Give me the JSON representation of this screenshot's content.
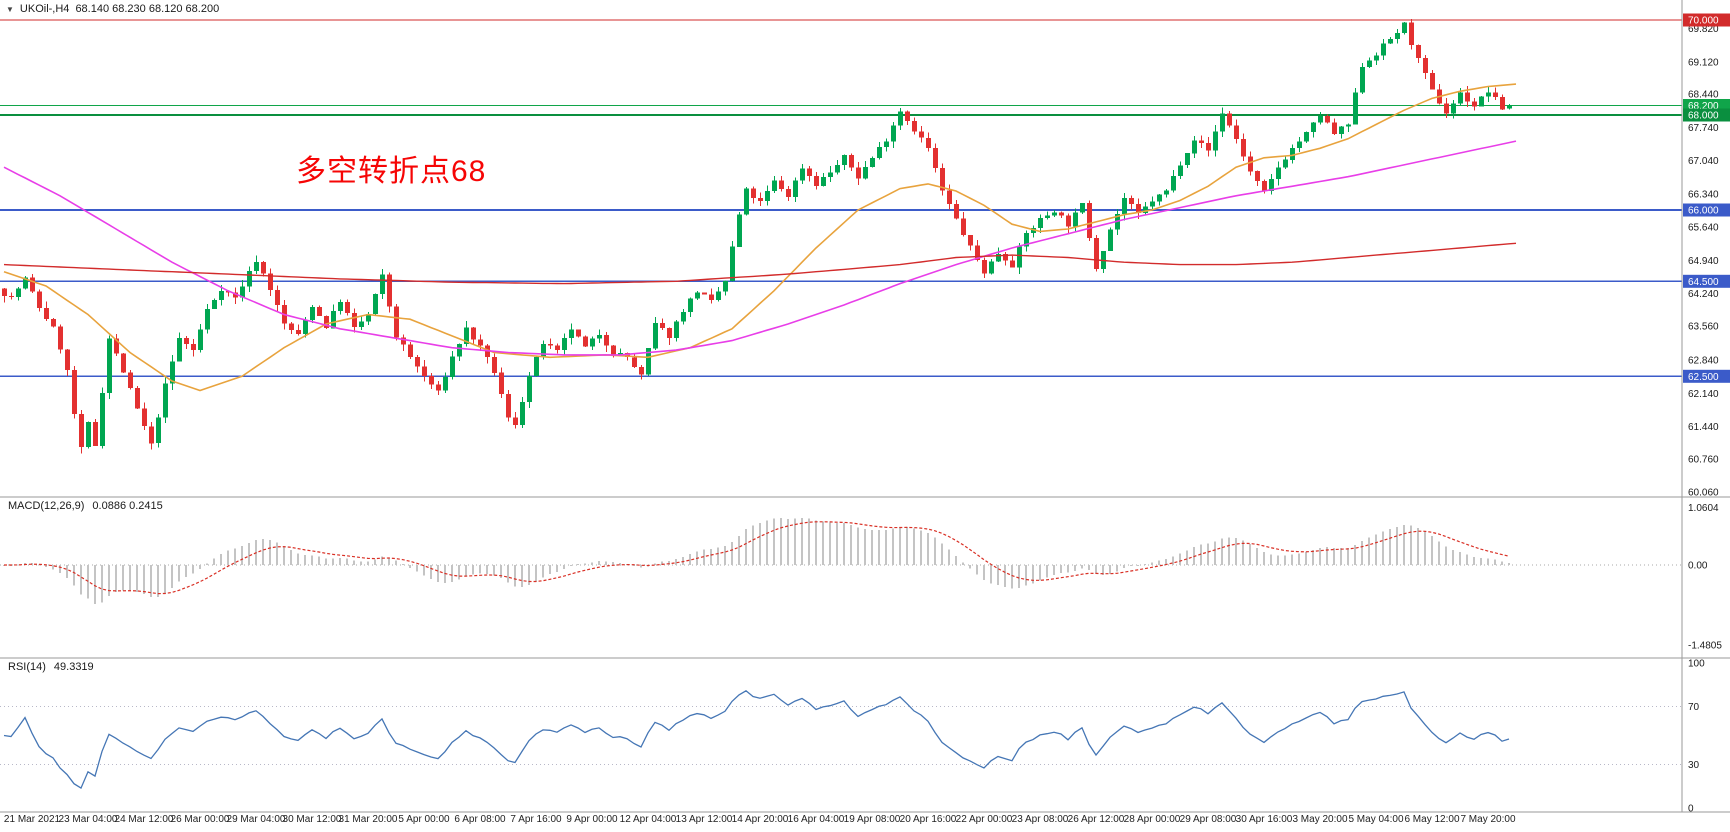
{
  "window": {
    "symbol_timeframe": "UKOil-,H4",
    "ohlc_text": "68.140 68.230 68.120 68.200"
  },
  "chart_data": {
    "type": "candlestick",
    "symbol": "UKOil-",
    "timeframe": "H4",
    "bar_count": 216,
    "ohlc": {
      "open": 68.14,
      "high": 68.23,
      "low": 68.12,
      "close": 68.2
    },
    "y_axis": {
      "min": 60.0,
      "max": 70.42,
      "ticks": [
        "69.820",
        "69.120",
        "68.440",
        "67.740",
        "67.040",
        "66.340",
        "65.640",
        "64.940",
        "64.240",
        "63.560",
        "62.840",
        "62.140",
        "61.440",
        "60.760",
        "60.060"
      ]
    },
    "x_labels": [
      "21 Mar 2021",
      "23 Mar 04:00",
      "24 Mar 12:00",
      "26 Mar 00:00",
      "29 Mar 04:00",
      "30 Mar 12:00",
      "31 Mar 20:00",
      "5 Apr 00:00",
      "6 Apr 08:00",
      "7 Apr 16:00",
      "9 Apr 00:00",
      "12 Apr 04:00",
      "13 Apr 12:00",
      "14 Apr 20:00",
      "16 Apr 04:00",
      "19 Apr 08:00",
      "20 Apr 16:00",
      "22 Apr 00:00",
      "23 Apr 08:00",
      "26 Apr 12:00",
      "28 Apr 00:00",
      "29 Apr 08:00",
      "30 Apr 16:00",
      "3 May 20:00",
      "5 May 04:00",
      "6 May 12:00",
      "7 May 20:00"
    ],
    "first_label_bar": 4,
    "bars_per_label": 8,
    "hlines": [
      {
        "price": 70.0,
        "label": "70.000",
        "color": "#d22b2b",
        "width": 1.3
      },
      {
        "price": 68.2,
        "label": "68.200",
        "color": "#10a54a",
        "width": 1.0
      },
      {
        "price": 68.0,
        "label": "68.000",
        "color": "#0a8f3f",
        "width": 1.6
      },
      {
        "price": 66.0,
        "label": "66.000",
        "color": "#3b5bc9",
        "width": 1.6
      },
      {
        "price": 64.5,
        "label": "64.500",
        "color": "#3b5bc9",
        "width": 1.6
      },
      {
        "price": 62.5,
        "label": "62.500",
        "color": "#3b5bc9",
        "width": 1.6
      }
    ],
    "annotation": {
      "text": "多空转折点68",
      "color": "#f60505",
      "bar": 42,
      "price": 67.2
    },
    "candle_colors": {
      "up": "#00a651",
      "down": "#e33030"
    },
    "price_path_anchors": [
      [
        0,
        64.35
      ],
      [
        2,
        64.15
      ],
      [
        4,
        64.55
      ],
      [
        6,
        63.95
      ],
      [
        8,
        63.5
      ],
      [
        9,
        63.1
      ],
      [
        10,
        62.6
      ],
      [
        11,
        61.7
      ],
      [
        12,
        60.95
      ],
      [
        13,
        61.5
      ],
      [
        14,
        61.05
      ],
      [
        15,
        62.2
      ],
      [
        16,
        63.3
      ],
      [
        18,
        62.6
      ],
      [
        20,
        61.8
      ],
      [
        22,
        61.05
      ],
      [
        24,
        62.3
      ],
      [
        26,
        63.3
      ],
      [
        28,
        63.05
      ],
      [
        30,
        63.9
      ],
      [
        32,
        64.35
      ],
      [
        34,
        64.15
      ],
      [
        37,
        64.95
      ],
      [
        39,
        64.35
      ],
      [
        41,
        63.6
      ],
      [
        43,
        63.35
      ],
      [
        45,
        64.0
      ],
      [
        47,
        63.55
      ],
      [
        49,
        64.1
      ],
      [
        51,
        63.5
      ],
      [
        53,
        63.8
      ],
      [
        55,
        64.6
      ],
      [
        57,
        63.35
      ],
      [
        59,
        62.9
      ],
      [
        61,
        62.5
      ],
      [
        63,
        62.15
      ],
      [
        65,
        62.9
      ],
      [
        67,
        63.5
      ],
      [
        69,
        63.1
      ],
      [
        71,
        62.6
      ],
      [
        73,
        61.6
      ],
      [
        74,
        61.5
      ],
      [
        76,
        62.5
      ],
      [
        78,
        63.2
      ],
      [
        80,
        63.0
      ],
      [
        82,
        63.5
      ],
      [
        84,
        63.1
      ],
      [
        86,
        63.4
      ],
      [
        88,
        63.0
      ],
      [
        90,
        62.9
      ],
      [
        92,
        62.5
      ],
      [
        94,
        63.6
      ],
      [
        96,
        63.35
      ],
      [
        98,
        63.9
      ],
      [
        100,
        64.3
      ],
      [
        102,
        64.05
      ],
      [
        104,
        64.5
      ],
      [
        106,
        65.9
      ],
      [
        107,
        66.4
      ],
      [
        109,
        66.15
      ],
      [
        111,
        66.6
      ],
      [
        113,
        66.3
      ],
      [
        115,
        66.9
      ],
      [
        117,
        66.55
      ],
      [
        119,
        66.8
      ],
      [
        121,
        67.1
      ],
      [
        123,
        66.7
      ],
      [
        125,
        67.1
      ],
      [
        127,
        67.5
      ],
      [
        129,
        68.1
      ],
      [
        131,
        67.7
      ],
      [
        133,
        67.3
      ],
      [
        135,
        66.4
      ],
      [
        137,
        65.8
      ],
      [
        139,
        65.2
      ],
      [
        141,
        64.7
      ],
      [
        143,
        65.1
      ],
      [
        145,
        64.85
      ],
      [
        147,
        65.5
      ],
      [
        149,
        65.8
      ],
      [
        151,
        66.0
      ],
      [
        153,
        65.7
      ],
      [
        155,
        66.1
      ],
      [
        157,
        64.8
      ],
      [
        159,
        65.6
      ],
      [
        161,
        66.25
      ],
      [
        163,
        65.9
      ],
      [
        165,
        66.2
      ],
      [
        167,
        66.4
      ],
      [
        169,
        67.0
      ],
      [
        171,
        67.5
      ],
      [
        173,
        67.25
      ],
      [
        175,
        68.05
      ],
      [
        177,
        67.5
      ],
      [
        179,
        66.8
      ],
      [
        181,
        66.35
      ],
      [
        183,
        66.9
      ],
      [
        185,
        67.3
      ],
      [
        187,
        67.6
      ],
      [
        189,
        68.0
      ],
      [
        191,
        67.6
      ],
      [
        193,
        67.8
      ],
      [
        195,
        69.05
      ],
      [
        197,
        69.3
      ],
      [
        199,
        69.6
      ],
      [
        201,
        69.9
      ],
      [
        203,
        69.15
      ],
      [
        205,
        68.5
      ],
      [
        207,
        68.05
      ],
      [
        209,
        68.45
      ],
      [
        211,
        68.2
      ],
      [
        213,
        68.5
      ],
      [
        215,
        68.14
      ],
      [
        216,
        68.2
      ]
    ],
    "ma_lines": [
      {
        "name": "ma-fast-orange",
        "color": "#e8a33d",
        "width": 1.6,
        "anchors": [
          [
            0,
            64.7
          ],
          [
            6,
            64.4
          ],
          [
            12,
            63.8
          ],
          [
            18,
            63.0
          ],
          [
            24,
            62.4
          ],
          [
            28,
            62.2
          ],
          [
            34,
            62.5
          ],
          [
            40,
            63.1
          ],
          [
            46,
            63.6
          ],
          [
            52,
            63.8
          ],
          [
            58,
            63.7
          ],
          [
            64,
            63.35
          ],
          [
            70,
            63.0
          ],
          [
            78,
            62.9
          ],
          [
            86,
            62.95
          ],
          [
            92,
            62.9
          ],
          [
            98,
            63.1
          ],
          [
            104,
            63.5
          ],
          [
            110,
            64.3
          ],
          [
            116,
            65.2
          ],
          [
            122,
            66.0
          ],
          [
            128,
            66.45
          ],
          [
            132,
            66.55
          ],
          [
            136,
            66.4
          ],
          [
            140,
            66.1
          ],
          [
            144,
            65.7
          ],
          [
            148,
            65.55
          ],
          [
            152,
            65.6
          ],
          [
            156,
            65.75
          ],
          [
            160,
            65.9
          ],
          [
            164,
            66.0
          ],
          [
            168,
            66.2
          ],
          [
            172,
            66.5
          ],
          [
            176,
            66.9
          ],
          [
            180,
            67.1
          ],
          [
            184,
            67.15
          ],
          [
            188,
            67.3
          ],
          [
            192,
            67.5
          ],
          [
            196,
            67.8
          ],
          [
            200,
            68.1
          ],
          [
            204,
            68.35
          ],
          [
            208,
            68.5
          ],
          [
            212,
            68.6
          ],
          [
            216,
            68.65
          ]
        ]
      },
      {
        "name": "ma-mid-magenta",
        "color": "#e83ee8",
        "width": 1.6,
        "anchors": [
          [
            0,
            66.9
          ],
          [
            8,
            66.3
          ],
          [
            16,
            65.6
          ],
          [
            24,
            64.9
          ],
          [
            32,
            64.3
          ],
          [
            40,
            63.8
          ],
          [
            48,
            63.5
          ],
          [
            56,
            63.3
          ],
          [
            64,
            63.1
          ],
          [
            72,
            63.0
          ],
          [
            80,
            62.95
          ],
          [
            88,
            62.95
          ],
          [
            96,
            63.05
          ],
          [
            104,
            63.25
          ],
          [
            112,
            63.6
          ],
          [
            120,
            64.0
          ],
          [
            128,
            64.45
          ],
          [
            136,
            64.85
          ],
          [
            144,
            65.2
          ],
          [
            152,
            65.5
          ],
          [
            160,
            65.8
          ],
          [
            168,
            66.05
          ],
          [
            176,
            66.3
          ],
          [
            184,
            66.5
          ],
          [
            192,
            66.7
          ],
          [
            200,
            66.95
          ],
          [
            208,
            67.2
          ],
          [
            216,
            67.45
          ]
        ]
      },
      {
        "name": "ma-slow-red",
        "color": "#d22b2b",
        "width": 1.4,
        "anchors": [
          [
            0,
            64.85
          ],
          [
            16,
            64.75
          ],
          [
            32,
            64.65
          ],
          [
            48,
            64.55
          ],
          [
            64,
            64.48
          ],
          [
            80,
            64.45
          ],
          [
            96,
            64.5
          ],
          [
            112,
            64.65
          ],
          [
            128,
            64.85
          ],
          [
            136,
            65.0
          ],
          [
            144,
            65.05
          ],
          [
            152,
            65.0
          ],
          [
            160,
            64.9
          ],
          [
            168,
            64.85
          ],
          [
            176,
            64.85
          ],
          [
            184,
            64.9
          ],
          [
            192,
            65.0
          ],
          [
            200,
            65.1
          ],
          [
            208,
            65.2
          ],
          [
            216,
            65.3
          ]
        ]
      }
    ],
    "indicators": [
      {
        "name": "MACD",
        "label": "MACD(12,26,9)",
        "values_label": "0.0886 0.2415",
        "params": [
          12,
          26,
          9
        ],
        "axis": [
          {
            "text": "1.0604",
            "value": 1.0604
          },
          {
            "text": "0.00",
            "value": 0
          },
          {
            "text": "-1.4805",
            "value": -1.4805
          }
        ],
        "histogram_color": "#c4c4c4",
        "signal_color": "#d93025"
      },
      {
        "name": "RSI",
        "label": "RSI(14)",
        "values_label": "49.3319",
        "params": [
          14
        ],
        "axis": [
          {
            "text": "100",
            "value": 100
          },
          {
            "text": "70",
            "value": 70
          },
          {
            "text": "30",
            "value": 30
          },
          {
            "text": "0",
            "value": 0
          }
        ],
        "levels": [
          70,
          30
        ],
        "line_color": "#4576b5"
      }
    ]
  }
}
